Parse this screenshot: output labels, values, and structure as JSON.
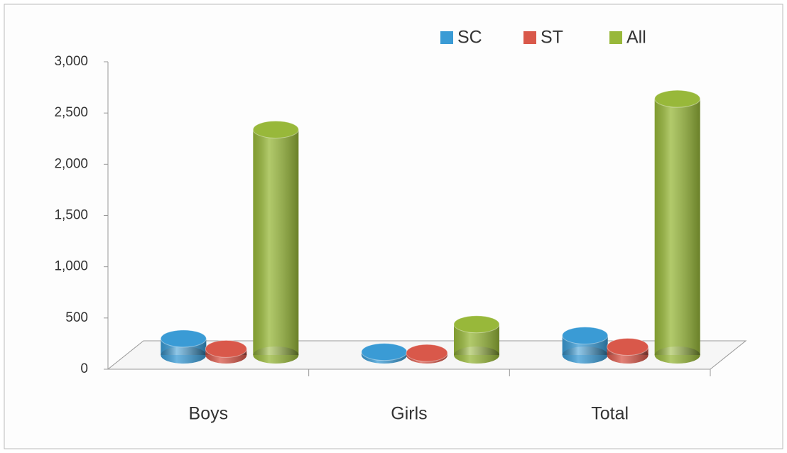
{
  "chart_data": {
    "type": "bar3d",
    "categories": [
      "Boys",
      "Girls",
      "Total"
    ],
    "series": [
      {
        "name": "SC",
        "color": "#3a9bd5",
        "values": [
          160,
          30,
          190
        ]
      },
      {
        "name": "ST",
        "color": "#d9584a",
        "values": [
          60,
          20,
          80
        ]
      },
      {
        "name": "All",
        "color": "#98b83a",
        "values": [
          2200,
          300,
          2500
        ]
      }
    ],
    "ylim": [
      0,
      3000
    ],
    "yticks": [
      0,
      {
        "value": 500,
        "label": "500"
      },
      {
        "value": 1000,
        "label": "1,000"
      },
      {
        "value": 1500,
        "label": "1,500"
      },
      {
        "value": 2000,
        "label": "2,000"
      },
      {
        "value": 2500,
        "label": "2,500"
      },
      {
        "value": 3000,
        "label": "3,000"
      }
    ],
    "legend": "top-right"
  }
}
